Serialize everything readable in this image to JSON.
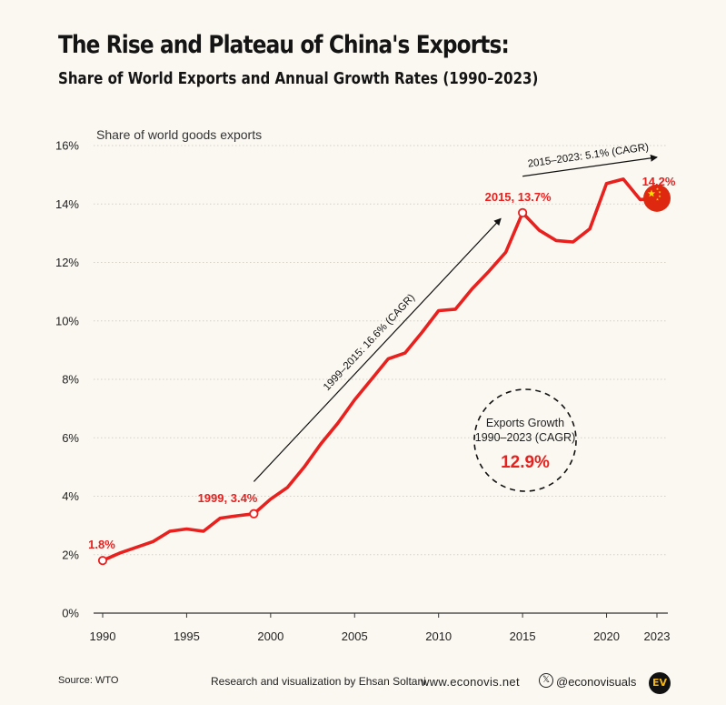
{
  "header": {
    "title": "The Rise and Plateau of China's Exports:",
    "subtitle": "Share of World Exports and Annual Growth Rates (1990–2023)"
  },
  "chart_data": {
    "type": "line",
    "ylabel": "Share of world goods exports",
    "ylim": [
      0,
      16
    ],
    "xlim": [
      1990,
      2023
    ],
    "y_ticks": [
      "0%",
      "2%",
      "4%",
      "6%",
      "8%",
      "10%",
      "12%",
      "14%",
      "16%"
    ],
    "x_ticks": [
      "1990",
      "1995",
      "2000",
      "2005",
      "2010",
      "2015",
      "2020",
      "2023"
    ],
    "grid": true,
    "series": [
      {
        "color": "#e8211f",
        "x": [
          1990,
          1991,
          1992,
          1993,
          1994,
          1995,
          1996,
          1997,
          1998,
          1999,
          2000,
          2001,
          2002,
          2003,
          2004,
          2005,
          2006,
          2007,
          2008,
          2009,
          2010,
          2011,
          2012,
          2013,
          2014,
          2015,
          2016,
          2017,
          2018,
          2019,
          2020,
          2021,
          2022,
          2023
        ],
        "y": [
          1.8,
          2.05,
          2.25,
          2.45,
          2.8,
          2.88,
          2.8,
          3.25,
          3.33,
          3.4,
          3.9,
          4.3,
          5.0,
          5.8,
          6.5,
          7.3,
          8.0,
          8.7,
          8.9,
          9.6,
          10.35,
          10.4,
          11.1,
          11.7,
          12.35,
          13.7,
          13.1,
          12.75,
          12.7,
          13.15,
          14.7,
          14.85,
          14.15,
          14.2
        ]
      }
    ],
    "highlights": [
      {
        "x": 1990,
        "y": 1.8,
        "label": "1.8%"
      },
      {
        "x": 1999,
        "y": 3.4,
        "label": "1999, 3.4%"
      },
      {
        "x": 2015,
        "y": 13.7,
        "label": "2015, 13.7%"
      },
      {
        "x": 2023,
        "y": 14.2,
        "label": "14.2%"
      }
    ],
    "annotations": [
      {
        "text": "1999–2015: 16.6% (CAGR)",
        "from": [
          1999,
          4.5
        ],
        "to": [
          2013.7,
          13.5
        ]
      },
      {
        "text": "2015–2023: 5.1% (CAGR)",
        "from": [
          2015,
          14.95
        ],
        "to": [
          2023,
          15.6
        ]
      }
    ],
    "callout": {
      "line1": "Exports Growth",
      "line2": "1990–2023 (CAGR)",
      "value": "12.9%"
    },
    "flag_icon": "china-flag-icon"
  },
  "footer": {
    "source": "Source: WTO",
    "credit": "Research and visualization by Ehsan Soltani",
    "website": "www.econovis.net",
    "social": "@econovisuals",
    "social_icon": "x-logo-icon",
    "logo_text": "EV"
  }
}
